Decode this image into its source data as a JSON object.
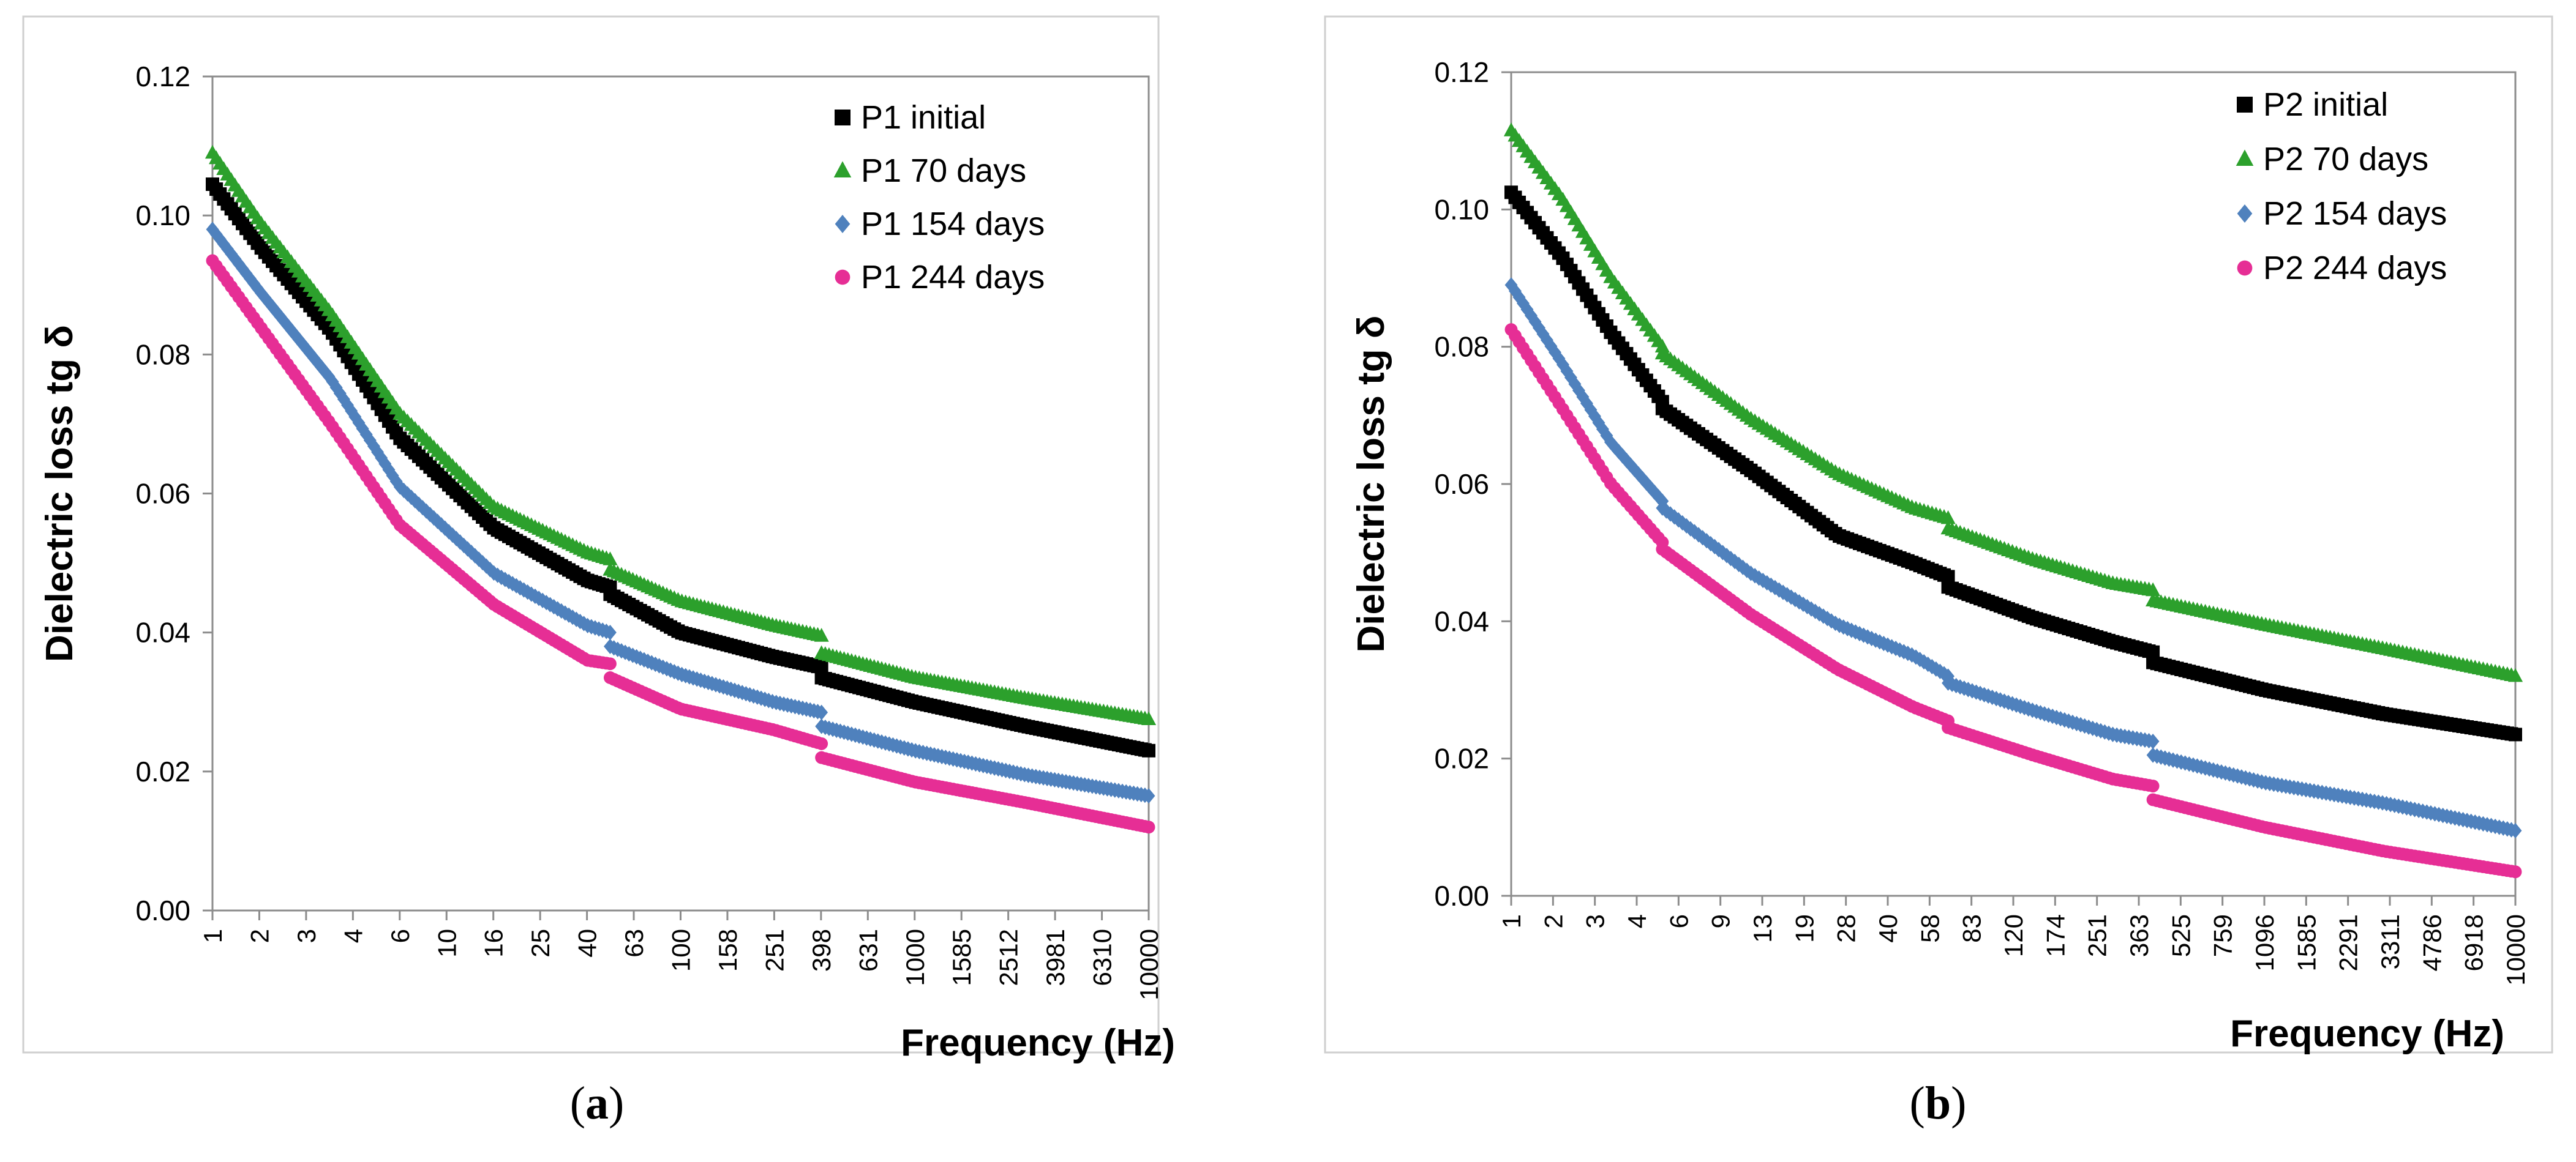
{
  "captions": {
    "a": "a",
    "b": "b"
  },
  "chart_data": [
    {
      "id": "a",
      "type": "scatter",
      "xscale": "log",
      "xlabel": "Frequency (Hz)",
      "ylabel": "Dielectric loss tg δ",
      "ylim": [
        0,
        0.12
      ],
      "yticks": [
        "0.00",
        "0.02",
        "0.04",
        "0.06",
        "0.08",
        "0.10",
        "0.12"
      ],
      "xticks": [
        "1",
        "2",
        "3",
        "4",
        "6",
        "10",
        "16",
        "25",
        "40",
        "63",
        "100",
        "158",
        "251",
        "398",
        "631",
        "1000",
        "1585",
        "2512",
        "3981",
        "6310",
        "10000"
      ],
      "legend_position": "top-right",
      "series": [
        {
          "name": "P1 initial",
          "color": "#000000",
          "marker": "square",
          "segments": [
            {
              "x": [
                1,
                1.6,
                3.2,
                6.3,
                16,
                40,
                50
              ],
              "y": [
                0.1045,
                0.0955,
                0.0835,
                0.068,
                0.055,
                0.0475,
                0.0465
              ]
            },
            {
              "x": [
                50,
                100,
                250,
                400
              ],
              "y": [
                0.0455,
                0.04,
                0.0365,
                0.035
              ]
            },
            {
              "x": [
                400,
                1000,
                3000,
                10000
              ],
              "y": [
                0.0335,
                0.03,
                0.0265,
                0.023
              ]
            }
          ]
        },
        {
          "name": "P1 70 days",
          "color": "#2ca02c",
          "marker": "triangle",
          "segments": [
            {
              "x": [
                1,
                1.6,
                3.2,
                6.3,
                16,
                40,
                50
              ],
              "y": [
                0.109,
                0.099,
                0.086,
                0.0715,
                0.058,
                0.0515,
                0.0505
              ]
            },
            {
              "x": [
                50,
                100,
                250,
                400
              ],
              "y": [
                0.049,
                0.0445,
                0.041,
                0.0395
              ]
            },
            {
              "x": [
                400,
                1000,
                3000,
                10000
              ],
              "y": [
                0.037,
                0.0335,
                0.0305,
                0.0275
              ]
            }
          ]
        },
        {
          "name": "P1 154 days",
          "color": "#4f81bd",
          "marker": "diamond",
          "segments": [
            {
              "x": [
                1,
                1.6,
                3.2,
                6.3,
                16,
                40,
                50
              ],
              "y": [
                0.098,
                0.089,
                0.0765,
                0.061,
                0.0485,
                0.041,
                0.04
              ]
            },
            {
              "x": [
                50,
                100,
                250,
                400
              ],
              "y": [
                0.038,
                0.034,
                0.03,
                0.0285
              ]
            },
            {
              "x": [
                400,
                1000,
                3000,
                10000
              ],
              "y": [
                0.0265,
                0.023,
                0.0195,
                0.0165
              ]
            }
          ]
        },
        {
          "name": "P1 244 days",
          "color": "#e62e95",
          "marker": "circle",
          "segments": [
            {
              "x": [
                1,
                1.6,
                3.2,
                6.3,
                16,
                40,
                50
              ],
              "y": [
                0.0935,
                0.084,
                0.07,
                0.0555,
                0.044,
                0.036,
                0.0355
              ]
            },
            {
              "x": [
                50,
                100,
                250,
                400
              ],
              "y": [
                0.0335,
                0.029,
                0.026,
                0.024
              ]
            },
            {
              "x": [
                400,
                1000,
                3000,
                10000
              ],
              "y": [
                0.022,
                0.0185,
                0.0155,
                0.012
              ]
            }
          ]
        }
      ]
    },
    {
      "id": "b",
      "type": "scatter",
      "xscale": "log",
      "xlabel": "Frequency (Hz)",
      "ylabel": "Dielectric loss tg δ",
      "ylim": [
        0,
        0.12
      ],
      "yticks": [
        "0.00",
        "0.02",
        "0.04",
        "0.06",
        "0.08",
        "0.10",
        "0.12"
      ],
      "xticks": [
        "1",
        "2",
        "3",
        "4",
        "6",
        "9",
        "13",
        "19",
        "28",
        "40",
        "58",
        "83",
        "120",
        "174",
        "251",
        "363",
        "525",
        "759",
        "1096",
        "1585",
        "2291",
        "3311",
        "4786",
        "6918",
        "10000"
      ],
      "legend_position": "top-right",
      "series": [
        {
          "name": "P2 initial",
          "color": "#000000",
          "marker": "square",
          "segments": [
            {
              "x": [
                1,
                1.6,
                2.5,
                4
              ],
              "y": [
                0.1025,
                0.093,
                0.082,
                0.072
              ]
            },
            {
              "x": [
                4,
                9,
                20,
                40,
                55
              ],
              "y": [
                0.071,
                0.062,
                0.0525,
                0.0485,
                0.0465
              ]
            },
            {
              "x": [
                55,
                120,
                250,
                360
              ],
              "y": [
                0.045,
                0.0405,
                0.037,
                0.0355
              ]
            },
            {
              "x": [
                360,
                1000,
                3000,
                10000
              ],
              "y": [
                0.034,
                0.03,
                0.0265,
                0.0235
              ]
            }
          ]
        },
        {
          "name": "P2 70 days",
          "color": "#2ca02c",
          "marker": "triangle",
          "segments": [
            {
              "x": [
                1,
                1.6,
                2.5,
                4
              ],
              "y": [
                0.1115,
                0.1015,
                0.09,
                0.08
              ]
            },
            {
              "x": [
                4,
                9,
                20,
                40,
                55
              ],
              "y": [
                0.079,
                0.0695,
                0.0615,
                0.0565,
                0.055
              ]
            },
            {
              "x": [
                55,
                120,
                250,
                360
              ],
              "y": [
                0.0535,
                0.049,
                0.0455,
                0.0445
              ]
            },
            {
              "x": [
                360,
                1000,
                3000,
                10000
              ],
              "y": [
                0.043,
                0.0395,
                0.036,
                0.032
              ]
            }
          ]
        },
        {
          "name": "P2 154 days",
          "color": "#4f81bd",
          "marker": "diamond",
          "segments": [
            {
              "x": [
                1,
                1.6,
                2.5,
                4
              ],
              "y": [
                0.089,
                0.0775,
                0.066,
                0.0575
              ]
            },
            {
              "x": [
                4,
                9,
                20,
                40,
                55
              ],
              "y": [
                0.0565,
                0.047,
                0.0395,
                0.035,
                0.032
              ]
            },
            {
              "x": [
                55,
                120,
                250,
                360
              ],
              "y": [
                0.031,
                0.027,
                0.0235,
                0.0225
              ]
            },
            {
              "x": [
                360,
                1000,
                3000,
                10000
              ],
              "y": [
                0.0205,
                0.0165,
                0.0135,
                0.0095
              ]
            }
          ]
        },
        {
          "name": "P2 244 days",
          "color": "#e62e95",
          "marker": "circle",
          "segments": [
            {
              "x": [
                1,
                1.6,
                2.5,
                4
              ],
              "y": [
                0.0825,
                0.071,
                0.06,
                0.0515
              ]
            },
            {
              "x": [
                4,
                9,
                20,
                40,
                55
              ],
              "y": [
                0.0505,
                0.041,
                0.033,
                0.0275,
                0.0255
              ]
            },
            {
              "x": [
                55,
                120,
                250,
                360
              ],
              "y": [
                0.0245,
                0.0205,
                0.017,
                0.016
              ]
            },
            {
              "x": [
                360,
                1000,
                3000,
                10000
              ],
              "y": [
                0.014,
                0.01,
                0.0065,
                0.0035
              ]
            }
          ]
        }
      ]
    }
  ]
}
